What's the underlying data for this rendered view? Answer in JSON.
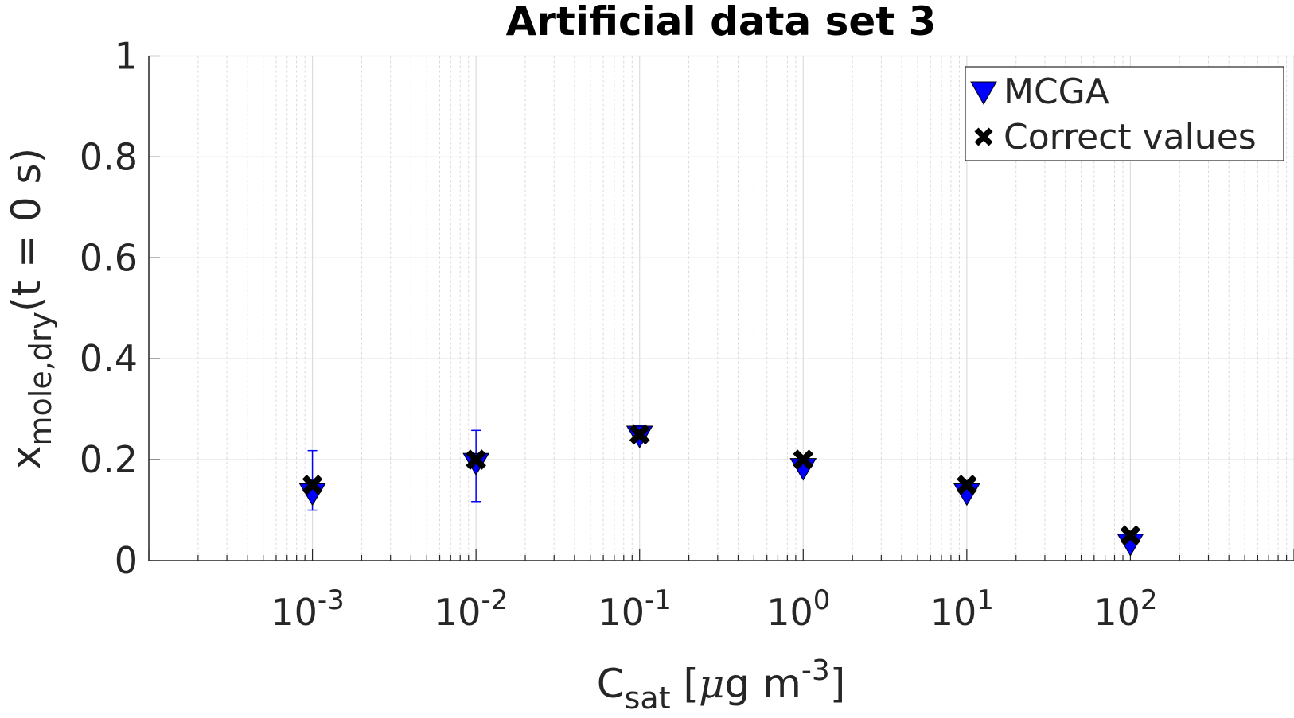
{
  "chart_data": {
    "type": "scatter",
    "title": "Artificial data set 3",
    "xlabel": {
      "base": "C",
      "sub": "sat",
      "rest": " [",
      "mu": "μ",
      "unit": "g m",
      "sup": "-3",
      "close": "]"
    },
    "ylabel": {
      "base": "x",
      "sub": "mole,dry",
      "rest": "(t = 0 s)"
    },
    "xscale": "log",
    "xlim": [
      0.0001,
      1000
    ],
    "ylim": [
      0,
      1
    ],
    "grid": true,
    "minor_grid": true,
    "legend_position": "top-right",
    "xticks": [
      {
        "value": 0.001,
        "base": "10",
        "exp": "-3"
      },
      {
        "value": 0.01,
        "base": "10",
        "exp": "-2"
      },
      {
        "value": 0.1,
        "base": "10",
        "exp": "-1"
      },
      {
        "value": 1,
        "base": "10",
        "exp": "0"
      },
      {
        "value": 10,
        "base": "10",
        "exp": "1"
      },
      {
        "value": 100,
        "base": "10",
        "exp": "2"
      }
    ],
    "yticks": [
      {
        "value": 0,
        "label": "0"
      },
      {
        "value": 0.2,
        "label": "0.2"
      },
      {
        "value": 0.4,
        "label": "0.4"
      },
      {
        "value": 0.6,
        "label": "0.6"
      },
      {
        "value": 0.8,
        "label": "0.8"
      },
      {
        "value": 1,
        "label": "1"
      }
    ],
    "x": [
      0.001,
      0.01,
      0.1,
      1,
      10,
      100
    ],
    "series": [
      {
        "name": "MCGA",
        "marker": "triangle-down",
        "color": "#0000ff",
        "values": [
          0.135,
          0.195,
          0.249,
          0.185,
          0.135,
          0.035
        ],
        "error_low": [
          0.1,
          0.117,
          0.24,
          null,
          null,
          null
        ],
        "error_high": [
          0.218,
          0.258,
          0.268,
          null,
          null,
          null
        ]
      },
      {
        "name": "Correct values",
        "marker": "x",
        "color": "#000000",
        "values": [
          0.15,
          0.2,
          0.25,
          0.2,
          0.15,
          0.05
        ]
      }
    ]
  }
}
